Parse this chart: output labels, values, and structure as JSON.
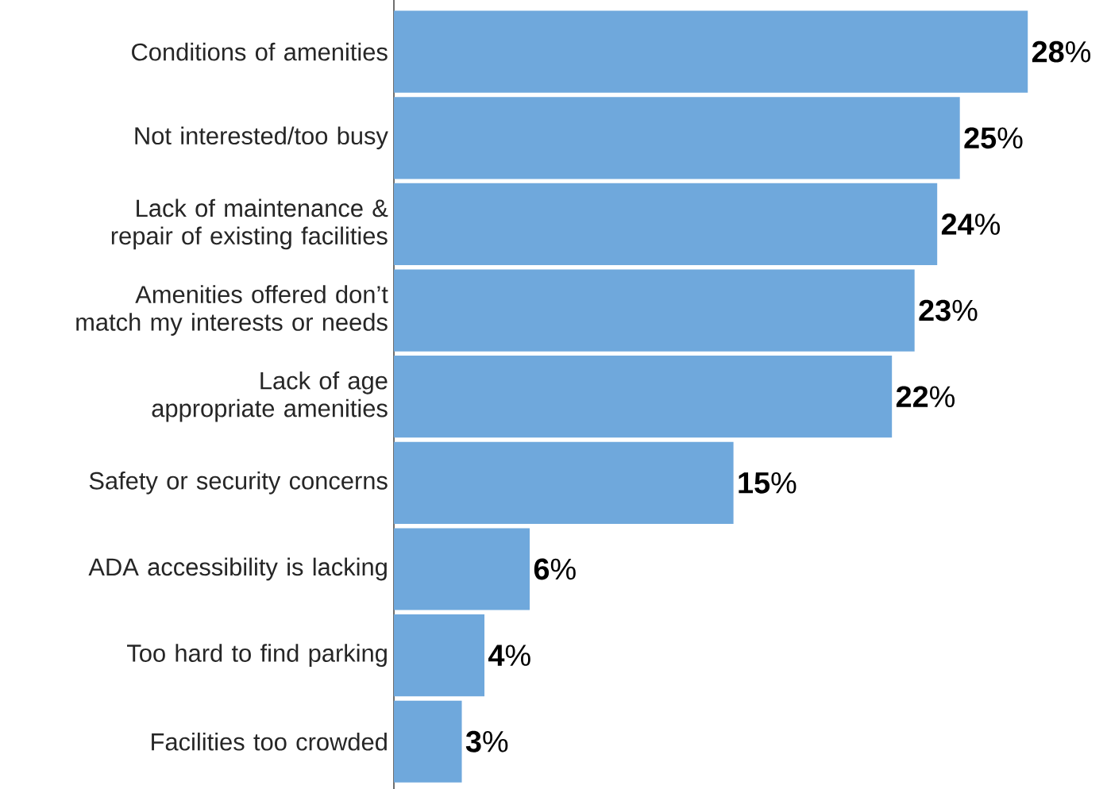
{
  "chart_data": {
    "type": "bar",
    "orientation": "horizontal",
    "categories": [
      "Conditions of amenities",
      "Not interested/too busy",
      "Lack of maintenance & repair of existing facilities",
      "Amenities offered don’t match my interests or needs",
      "Lack of age appropriate amenities",
      "Safety or security concerns",
      "ADA accessibility is lacking",
      "Too hard to find parking",
      "Facilities too crowded"
    ],
    "values": [
      28,
      25,
      24,
      23,
      22,
      15,
      6,
      4,
      3
    ],
    "value_labels": [
      "**28**%",
      "**25**%",
      "**24**%",
      "**23**%",
      "**22**%",
      "**15**%",
      "**6**%",
      "**4**%",
      "**3**%"
    ],
    "color": "#6fa8dc"
  }
}
